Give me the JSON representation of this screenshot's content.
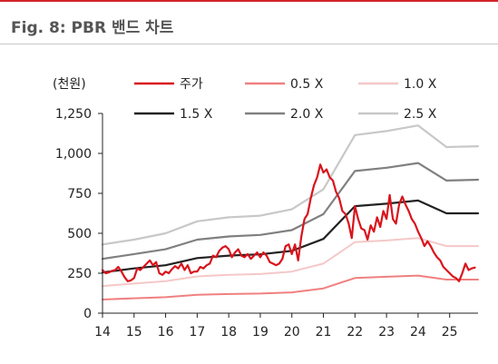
{
  "header": {
    "title": "Fig. 8: PBR 밴드 차트"
  },
  "chart_data": {
    "type": "line",
    "title": "Fig. 8: PBR 밴드 차트",
    "ylabel": "(천원)",
    "xlabel": "",
    "ylim": [
      0,
      1250
    ],
    "xlim": [
      2014,
      2025.9
    ],
    "y_ticks": [
      0,
      250,
      500,
      750,
      1000,
      1250
    ],
    "y_tick_labels": [
      "0",
      "250",
      "500",
      "750",
      "1,000",
      "1,250"
    ],
    "x_ticks": [
      2014,
      2015,
      2016,
      2017,
      2018,
      2019,
      2020,
      2021,
      2022,
      2023,
      2024,
      2025
    ],
    "x_tick_labels": [
      "14",
      "15",
      "16",
      "17",
      "18",
      "19",
      "20",
      "21",
      "22",
      "23",
      "24",
      "25"
    ],
    "grid": false,
    "legend_placement": "top",
    "series": [
      {
        "name": "주가",
        "color": "#d9141c",
        "width": 2.2,
        "x": [
          2014.0,
          2014.1,
          2014.2,
          2014.3,
          2014.4,
          2014.5,
          2014.6,
          2014.7,
          2014.8,
          2014.9,
          2015.0,
          2015.1,
          2015.2,
          2015.3,
          2015.4,
          2015.5,
          2015.6,
          2015.7,
          2015.8,
          2015.9,
          2016.0,
          2016.1,
          2016.2,
          2016.3,
          2016.4,
          2016.5,
          2016.6,
          2016.7,
          2016.8,
          2016.9,
          2017.0,
          2017.1,
          2017.2,
          2017.3,
          2017.4,
          2017.5,
          2017.6,
          2017.7,
          2017.8,
          2017.9,
          2018.0,
          2018.1,
          2018.2,
          2018.3,
          2018.4,
          2018.5,
          2018.6,
          2018.7,
          2018.8,
          2018.9,
          2019.0,
          2019.1,
          2019.2,
          2019.3,
          2019.4,
          2019.5,
          2019.6,
          2019.7,
          2019.8,
          2019.9,
          2020.0,
          2020.1,
          2020.2,
          2020.3,
          2020.4,
          2020.5,
          2020.6,
          2020.7,
          2020.8,
          2020.9,
          2021.0,
          2021.1,
          2021.2,
          2021.3,
          2021.4,
          2021.5,
          2021.6,
          2021.7,
          2021.8,
          2021.9,
          2022.0,
          2022.1,
          2022.2,
          2022.3,
          2022.4,
          2022.5,
          2022.6,
          2022.7,
          2022.8,
          2022.9,
          2023.0,
          2023.1,
          2023.2,
          2023.3,
          2023.4,
          2023.5,
          2023.6,
          2023.7,
          2023.8,
          2023.9,
          2024.0,
          2024.1,
          2024.2,
          2024.3,
          2024.4,
          2024.5,
          2024.6,
          2024.7,
          2024.8,
          2024.9,
          2025.0,
          2025.1,
          2025.2,
          2025.3,
          2025.4,
          2025.5,
          2025.6,
          2025.7,
          2025.8
        ],
        "y": [
          270,
          250,
          255,
          265,
          270,
          290,
          260,
          225,
          200,
          205,
          220,
          280,
          270,
          290,
          310,
          330,
          300,
          320,
          250,
          240,
          260,
          250,
          275,
          295,
          280,
          310,
          270,
          300,
          250,
          260,
          260,
          290,
          280,
          300,
          310,
          360,
          350,
          390,
          410,
          420,
          400,
          350,
          380,
          400,
          360,
          350,
          370,
          340,
          360,
          380,
          350,
          380,
          360,
          320,
          310,
          300,
          310,
          340,
          420,
          430,
          370,
          430,
          330,
          480,
          590,
          620,
          720,
          800,
          850,
          930,
          880,
          900,
          850,
          830,
          760,
          720,
          640,
          620,
          560,
          470,
          670,
          590,
          530,
          520,
          460,
          550,
          510,
          600,
          540,
          640,
          590,
          740,
          590,
          560,
          680,
          730,
          680,
          640,
          590,
          560,
          510,
          470,
          420,
          450,
          420,
          380,
          350,
          330,
          290,
          270,
          250,
          230,
          220,
          200,
          250,
          310,
          270,
          280,
          285
        ]
      },
      {
        "name": "0.5 X",
        "color": "#f08080",
        "width": 2,
        "x": [
          2014.0,
          2015.0,
          2016.0,
          2017.0,
          2018.0,
          2019.0,
          2020.0,
          2021.0,
          2022.0,
          2023.0,
          2024.0,
          2024.9,
          2025.9
        ],
        "y": [
          85,
          93,
          100,
          115,
          120,
          123,
          130,
          155,
          220,
          228,
          235,
          210,
          210
        ]
      },
      {
        "name": "1.0 X",
        "color": "#f5c8c8",
        "width": 2,
        "x": [
          2014.0,
          2015.0,
          2016.0,
          2017.0,
          2018.0,
          2019.0,
          2020.0,
          2021.0,
          2022.0,
          2023.0,
          2024.0,
          2024.9,
          2025.9
        ],
        "y": [
          170,
          185,
          200,
          230,
          240,
          245,
          260,
          310,
          445,
          455,
          470,
          420,
          420
        ]
      },
      {
        "name": "1.5 X",
        "color": "#222222",
        "width": 2.2,
        "x": [
          2014.0,
          2015.0,
          2016.0,
          2017.0,
          2018.0,
          2019.0,
          2020.0,
          2021.0,
          2022.0,
          2023.0,
          2024.0,
          2024.9,
          2025.9
        ],
        "y": [
          255,
          280,
          300,
          345,
          360,
          368,
          390,
          465,
          670,
          685,
          705,
          625,
          625
        ]
      },
      {
        "name": "2.0 X",
        "color": "#808080",
        "width": 2.2,
        "x": [
          2014.0,
          2015.0,
          2016.0,
          2017.0,
          2018.0,
          2019.0,
          2020.0,
          2021.0,
          2022.0,
          2023.0,
          2024.0,
          2024.9,
          2025.9
        ],
        "y": [
          340,
          370,
          400,
          460,
          480,
          490,
          520,
          620,
          890,
          910,
          940,
          830,
          835
        ]
      },
      {
        "name": "2.5 X",
        "color": "#c8c8c8",
        "width": 2.2,
        "x": [
          2014.0,
          2015.0,
          2016.0,
          2017.0,
          2018.0,
          2019.0,
          2020.0,
          2021.0,
          2022.0,
          2023.0,
          2024.0,
          2024.9,
          2025.9
        ],
        "y": [
          430,
          460,
          500,
          575,
          600,
          610,
          650,
          775,
          1115,
          1140,
          1175,
          1040,
          1045
        ]
      }
    ]
  }
}
